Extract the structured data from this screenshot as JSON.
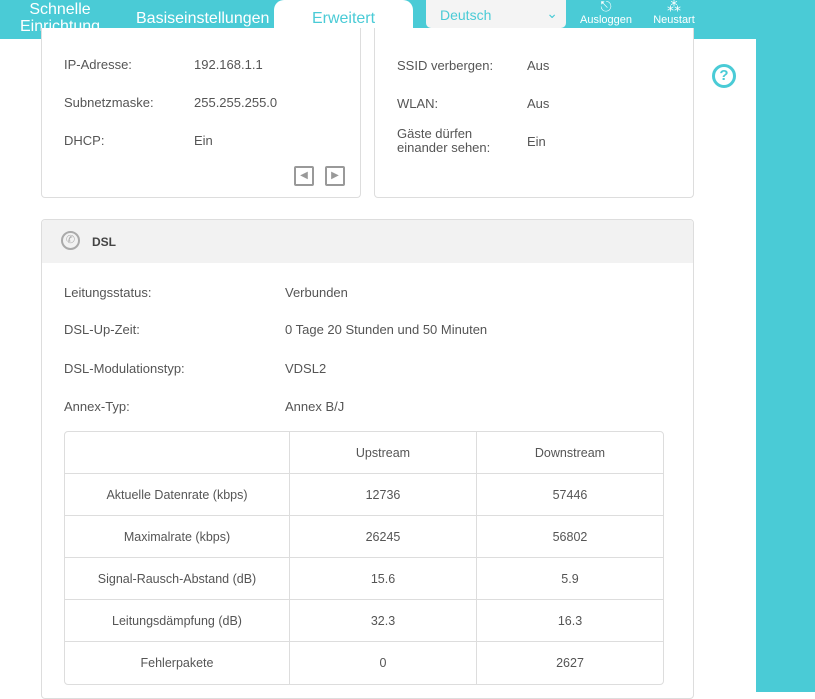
{
  "header": {
    "tabs": [
      {
        "label_1": "Schnelle",
        "label_2": "Einrichtung"
      },
      {
        "label": "Basiseinstellungen"
      },
      {
        "label": "Erweitert"
      }
    ],
    "language": "Deutsch",
    "logout": "Ausloggen",
    "reboot": "Neustart",
    "accent": "#4acbd6"
  },
  "network": {
    "rows": [
      {
        "label": "IP-Adresse:",
        "value": "192.168.1.1"
      },
      {
        "label": "Subnetzmaske:",
        "value": "255.255.255.0"
      },
      {
        "label": "DHCP:",
        "value": "Ein"
      }
    ]
  },
  "wifi": {
    "rows": [
      {
        "label": "SSID verbergen:",
        "value": "Aus"
      },
      {
        "label": "WLAN:",
        "value": "Aus"
      },
      {
        "label": "Gäste dürfen einander sehen:",
        "value": "Ein"
      }
    ]
  },
  "dsl": {
    "title": "DSL",
    "rows": [
      {
        "label": "Leitungsstatus:",
        "value": "Verbunden"
      },
      {
        "label": "DSL-Up-Zeit:",
        "value": "0 Tage 20 Stunden und 50 Minuten"
      },
      {
        "label": "DSL-Modulationstyp:",
        "value": "VDSL2"
      },
      {
        "label": "Annex-Typ:",
        "value": "Annex B/J"
      }
    ],
    "table": {
      "headers": [
        "",
        "Upstream",
        "Downstream"
      ],
      "rows": [
        [
          "Aktuelle Datenrate (kbps)",
          "12736",
          "57446"
        ],
        [
          "Maximalrate (kbps)",
          "26245",
          "56802"
        ],
        [
          "Signal-Rausch-Abstand (dB)",
          "15.6",
          "5.9"
        ],
        [
          "Leitungsdämpfung (dB)",
          "32.3",
          "16.3"
        ],
        [
          "Fehlerpakete",
          "0",
          "2627"
        ]
      ]
    }
  }
}
